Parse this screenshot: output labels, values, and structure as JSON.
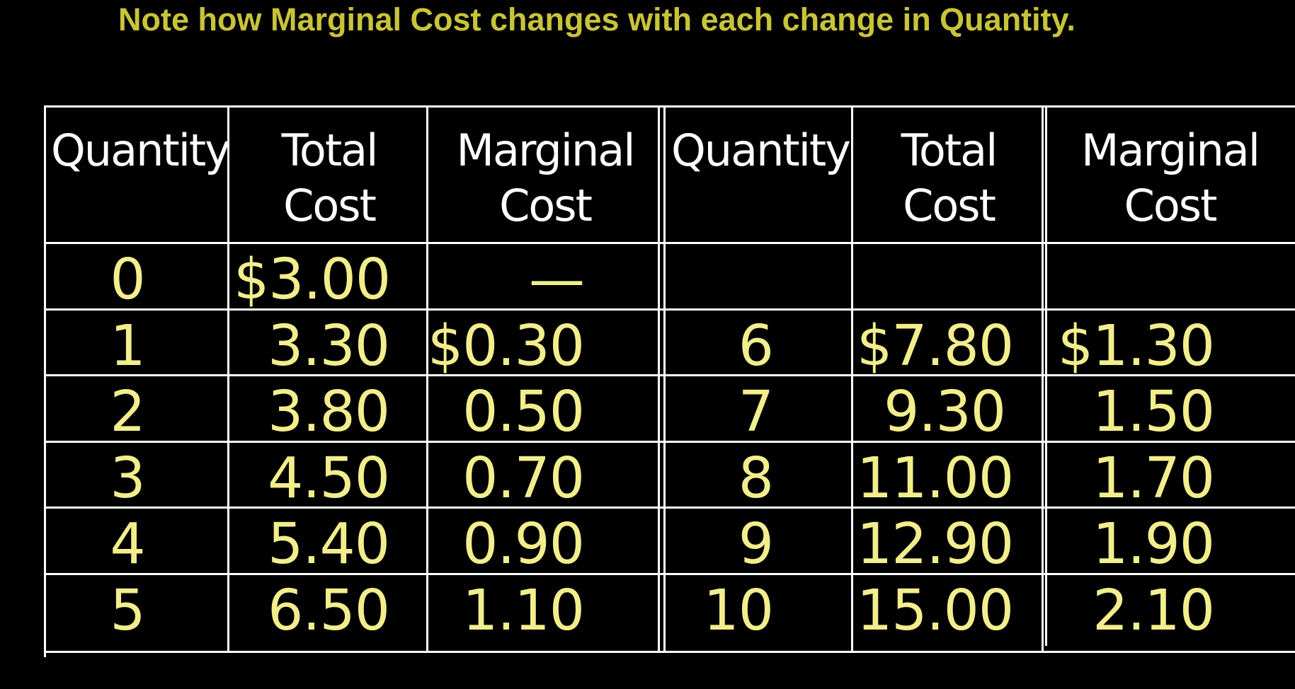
{
  "title": "Note how Marginal Cost changes with each change in Quantity.",
  "colors": {
    "background": "#000000",
    "title": "#c8c43a",
    "values": "#f2ee8c",
    "headers": "#ffffff",
    "grid": "#ffffff"
  },
  "headers": {
    "left": {
      "quantity": "Quantity",
      "total_cost": "Total\nCost",
      "marginal_cost": "Marginal\nCost"
    },
    "right": {
      "quantity": "Quantity",
      "total_cost": "Total\nCost",
      "marginal_cost": "Marginal\nCost"
    }
  },
  "left_rows": [
    {
      "quantity": "0",
      "total_cost": "$3.00",
      "marginal_cost": "—"
    },
    {
      "quantity": "1",
      "total_cost": "3.30",
      "marginal_cost": "$0.30"
    },
    {
      "quantity": "2",
      "total_cost": "3.80",
      "marginal_cost": "0.50"
    },
    {
      "quantity": "3",
      "total_cost": "4.50",
      "marginal_cost": "0.70"
    },
    {
      "quantity": "4",
      "total_cost": "5.40",
      "marginal_cost": "0.90"
    },
    {
      "quantity": "5",
      "total_cost": "6.50",
      "marginal_cost": "1.10"
    }
  ],
  "right_rows": [
    {
      "quantity": "",
      "total_cost": "",
      "marginal_cost": ""
    },
    {
      "quantity": "6",
      "total_cost": "$7.80",
      "marginal_cost": "$1.30"
    },
    {
      "quantity": "7",
      "total_cost": "9.30",
      "marginal_cost": "1.50"
    },
    {
      "quantity": "8",
      "total_cost": "11.00",
      "marginal_cost": "1.70"
    },
    {
      "quantity": "9",
      "total_cost": "12.90",
      "marginal_cost": "1.90"
    },
    {
      "quantity": "10",
      "total_cost": "15.00",
      "marginal_cost": "2.10"
    }
  ]
}
